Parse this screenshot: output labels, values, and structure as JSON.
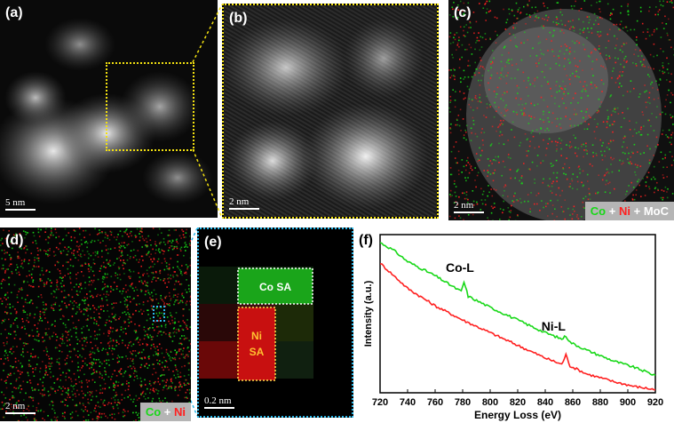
{
  "panels": {
    "a": {
      "label": "(a)",
      "scale": "5 nm"
    },
    "b": {
      "label": "(b)",
      "scale": "2 nm"
    },
    "c": {
      "label": "(c)",
      "scale": "2 nm",
      "legend": [
        "Co",
        "+",
        "Ni",
        "+",
        "MoC"
      ]
    },
    "d": {
      "label": "(d)",
      "scale": "2 nm",
      "legend": [
        "Co",
        "+",
        "Ni"
      ]
    },
    "e": {
      "label": "(e)",
      "scale": "0.2 nm",
      "co_box": "Co SA",
      "ni_box_line1": "Ni",
      "ni_box_line2": "SA"
    },
    "f": {
      "label": "(f)"
    }
  },
  "colors": {
    "co": "#18d818",
    "ni": "#ff2020",
    "mapping_bg": "#000000",
    "zoom_box_b": "#f2e010",
    "zoom_box_e": "#2ab7e8"
  },
  "chart_data": {
    "type": "line",
    "xlabel": "Energy Loss (eV)",
    "ylabel": "Intensity (a.u.)",
    "xlim": [
      720,
      920
    ],
    "xticks": [
      720,
      740,
      760,
      780,
      800,
      820,
      840,
      860,
      880,
      900,
      920
    ],
    "annotations": [
      "Co-L",
      "Ni-L"
    ],
    "series": [
      {
        "color": "#18d818",
        "x": [
          720,
          730,
          740,
          760,
          775,
          779,
          781,
          784,
          800,
          820,
          840,
          852,
          855,
          858,
          870,
          890,
          905,
          920
        ],
        "y": [
          0.95,
          0.9,
          0.83,
          0.74,
          0.66,
          0.64,
          0.7,
          0.61,
          0.54,
          0.46,
          0.38,
          0.34,
          0.36,
          0.32,
          0.27,
          0.2,
          0.16,
          0.11
        ]
      },
      {
        "color": "#ff2020",
        "x": [
          720,
          730,
          740,
          760,
          780,
          800,
          820,
          840,
          852,
          855,
          858,
          870,
          890,
          905,
          920
        ],
        "y": [
          0.82,
          0.74,
          0.66,
          0.55,
          0.46,
          0.38,
          0.3,
          0.22,
          0.18,
          0.24,
          0.17,
          0.12,
          0.07,
          0.04,
          0.02
        ]
      }
    ]
  }
}
